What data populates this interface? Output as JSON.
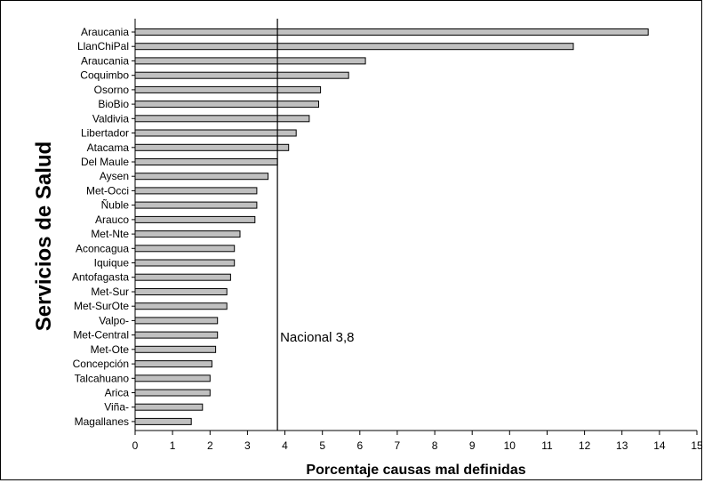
{
  "chart_data": {
    "type": "bar",
    "orientation": "horizontal",
    "title": "",
    "xlabel": "Porcentaje causas mal definidas",
    "ylabel": "Servicios de Salud",
    "xlim": [
      0,
      15
    ],
    "xticks": [
      "0",
      "1",
      "2",
      "3",
      "4",
      "5",
      "6",
      "7",
      "8",
      "9",
      "10",
      "11",
      "12",
      "13",
      "14",
      "15"
    ],
    "grid": false,
    "bar_color": "#c0c0c0",
    "categories": [
      "Araucania",
      "LlanChiPal",
      "Araucania",
      "Coquimbo",
      "Osorno",
      "BioBio",
      "Valdivia",
      "Libertador",
      "Atacama",
      "Del Maule",
      "Aysen",
      "Met-Occi",
      "Ñuble",
      "Arauco",
      "Met-Nte",
      "Aconcagua",
      "Iquique",
      "Antofagasta",
      "Met-Sur",
      "Met-SurOte",
      "Valpo-",
      "Met-Central",
      "Met-Ote",
      "Concepción",
      "Talcahuano",
      "Arica",
      "Viña-",
      "Magallanes"
    ],
    "values": [
      13.7,
      11.7,
      6.15,
      5.7,
      4.95,
      4.9,
      4.65,
      4.3,
      4.1,
      3.8,
      3.55,
      3.25,
      3.25,
      3.2,
      2.8,
      2.65,
      2.65,
      2.55,
      2.45,
      2.45,
      2.2,
      2.2,
      2.15,
      2.05,
      2.0,
      2.0,
      1.8,
      1.5
    ],
    "reference_line": {
      "value": 3.8,
      "label": "Nacional 3,8"
    }
  }
}
